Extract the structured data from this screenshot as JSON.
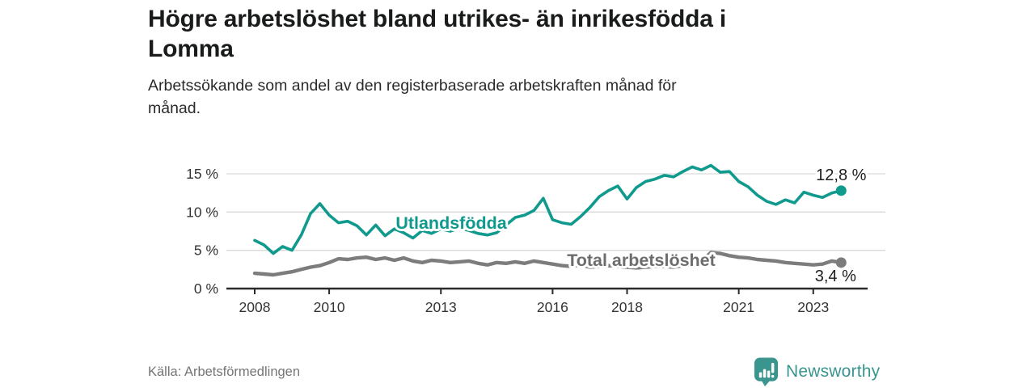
{
  "header": {
    "title": "Högre arbetslöshet bland utrikes- än inrikesfödda i\nLomma",
    "subtitle": "Arbetssökande som andel av den registerbaserade arbetskraften månad för\nmånad."
  },
  "chart_data": {
    "type": "line",
    "title": "Högre arbetslöshet bland utrikes- än inrikesfödda i Lomma",
    "subtitle": "Arbetssökande som andel av den registerbaserade arbetskraften månad för månad.",
    "unit": "%",
    "grid": "horizontal",
    "legend_position": "inline-labels",
    "xlim": [
      2007.2,
      2024.5
    ],
    "ylim": [
      0,
      16.5
    ],
    "x_ticks": [
      2008,
      2010,
      2013,
      2016,
      2018,
      2021,
      2023
    ],
    "x_tick_labels": [
      "2008",
      "2010",
      "2013",
      "2016",
      "2018",
      "2021",
      "2023"
    ],
    "y_ticks": [
      15,
      10,
      5,
      0
    ],
    "y_tick_labels": [
      "15 %",
      "10 %",
      "5 %",
      "0 %"
    ],
    "series": [
      {
        "name": "Utlandsfödda",
        "color": "#109a8d",
        "end_label": "12,8 %",
        "x_start": 2008.0,
        "x_step": 0.25,
        "values": [
          6.3,
          5.7,
          4.6,
          5.5,
          5.0,
          7.0,
          9.8,
          11.1,
          9.6,
          8.6,
          8.8,
          8.2,
          7.0,
          8.3,
          6.9,
          7.8,
          7.3,
          6.6,
          7.6,
          7.2,
          7.8,
          7.5,
          7.9,
          7.6,
          7.2,
          7.0,
          7.3,
          8.3,
          9.3,
          9.6,
          10.2,
          11.8,
          9.0,
          8.6,
          8.4,
          9.4,
          10.6,
          12.0,
          12.8,
          13.4,
          11.7,
          13.2,
          14.0,
          14.3,
          14.8,
          14.6,
          15.3,
          15.9,
          15.5,
          16.1,
          15.2,
          15.3,
          14.0,
          13.3,
          12.2,
          11.4,
          11.0,
          11.6,
          11.2,
          12.6,
          12.2,
          11.9,
          12.5,
          12.8
        ]
      },
      {
        "name": "Total arbetslöshet",
        "color": "#7c7c7c",
        "end_label": "3,4 %",
        "x_start": 2008.0,
        "x_step": 0.25,
        "values": [
          2.0,
          1.9,
          1.8,
          2.0,
          2.2,
          2.5,
          2.8,
          3.0,
          3.4,
          3.9,
          3.8,
          4.0,
          4.1,
          3.8,
          4.0,
          3.7,
          4.0,
          3.6,
          3.4,
          3.7,
          3.6,
          3.4,
          3.5,
          3.6,
          3.3,
          3.1,
          3.4,
          3.3,
          3.5,
          3.3,
          3.6,
          3.4,
          3.2,
          3.0,
          2.9,
          3.1,
          2.8,
          2.9,
          3.0,
          2.9,
          2.8,
          2.7,
          2.8,
          2.9,
          2.9,
          2.8,
          3.0,
          3.1,
          3.6,
          4.7,
          4.6,
          4.3,
          4.1,
          4.0,
          3.8,
          3.7,
          3.6,
          3.4,
          3.3,
          3.2,
          3.1,
          3.2,
          3.6,
          3.4
        ]
      }
    ]
  },
  "footer": {
    "source": "Källa: Arbetsförmedlingen",
    "logo_text": "Newsworthy",
    "logo_color": "#3a958e"
  }
}
